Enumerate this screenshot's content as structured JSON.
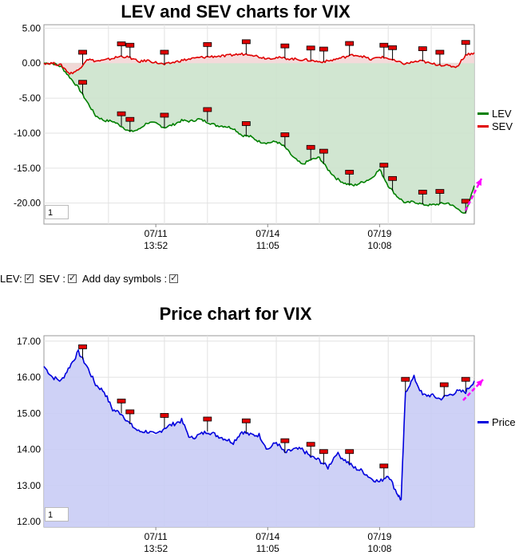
{
  "chart_data": [
    {
      "type": "area",
      "title": "LEV and SEV charts for VIX",
      "y_ticks": [
        "5.00",
        "0.00",
        "-5.00",
        "-10.00",
        "-15.00",
        "-20.00"
      ],
      "ylim": [
        -23.0,
        5.5
      ],
      "x_ticks": [
        {
          "date": "07/11",
          "time": "13:52"
        },
        {
          "date": "07/14",
          "time": "11:05"
        },
        {
          "date": "07/19",
          "time": "10:08"
        }
      ],
      "legend_position": "right",
      "zoom_value": "1",
      "series": [
        {
          "name": "LEV",
          "color": "#008000",
          "fill": "#cce3cc",
          "x": [
            0,
            2,
            4,
            6,
            8,
            10,
            12,
            14,
            16,
            18,
            20,
            22,
            24,
            26,
            28,
            30,
            32,
            34,
            36,
            38,
            40,
            42,
            44,
            46,
            48,
            50,
            52,
            54,
            56,
            58,
            60,
            62,
            64,
            66,
            68,
            70,
            72,
            74,
            76,
            78,
            80,
            82,
            84,
            86,
            88,
            90,
            92,
            94,
            96,
            98,
            100
          ],
          "values": [
            0,
            0,
            -0.5,
            -2,
            -3.5,
            -5.5,
            -7.5,
            -8.2,
            -8.3,
            -9,
            -9.8,
            -9.5,
            -8.5,
            -8.6,
            -9.2,
            -8.8,
            -8.2,
            -8.3,
            -8,
            -8.4,
            -8.9,
            -9,
            -9.3,
            -10.3,
            -10.5,
            -11.2,
            -11.4,
            -11.2,
            -12,
            -13.5,
            -14.5,
            -13.8,
            -13.5,
            -15.2,
            -16.5,
            -17.2,
            -17.5,
            -17,
            -16.5,
            -15.2,
            -17.5,
            -19,
            -20,
            -19.8,
            -20.2,
            -20.3,
            -20.1,
            -20,
            -20.8,
            -21.5,
            -17.5
          ]
        },
        {
          "name": "SEV",
          "color": "#e00000",
          "fill": "#f3d6d6",
          "x": [
            0,
            2,
            4,
            6,
            8,
            10,
            12,
            14,
            16,
            18,
            20,
            22,
            24,
            26,
            28,
            30,
            32,
            34,
            36,
            38,
            40,
            42,
            44,
            46,
            48,
            50,
            52,
            54,
            56,
            58,
            60,
            62,
            64,
            66,
            68,
            70,
            72,
            74,
            76,
            78,
            80,
            82,
            84,
            86,
            88,
            90,
            92,
            94,
            96,
            98,
            100
          ],
          "values": [
            0,
            0,
            -0.3,
            -1.5,
            -1.0,
            0.6,
            0.3,
            0.4,
            0.7,
            1.0,
            0.8,
            0.2,
            0.4,
            0.1,
            -0.2,
            0.1,
            0.4,
            0.6,
            0.8,
            0.9,
            1.0,
            1.0,
            1.2,
            1.3,
            1.3,
            0.9,
            0.7,
            0.8,
            0.7,
            0.6,
            0.5,
            0.4,
            0.2,
            0.3,
            0.6,
            0.9,
            1.2,
            1.0,
            0.5,
            0.9,
            0.7,
            0.2,
            -0.1,
            0.2,
            0.3,
            -0.1,
            -0.2,
            -0.4,
            -0.5,
            1.2,
            1.5
          ]
        }
      ],
      "markers_x": [
        9,
        18,
        20,
        28,
        38,
        47,
        56,
        62,
        65,
        71,
        79,
        81,
        88,
        92,
        98
      ]
    },
    {
      "type": "area",
      "title": "Price chart for VIX",
      "y_ticks": [
        "17.00",
        "16.00",
        "15.00",
        "14.00",
        "13.00",
        "12.00"
      ],
      "ylim": [
        11.85,
        17.15
      ],
      "x_ticks": [
        {
          "date": "07/11",
          "time": "13:52"
        },
        {
          "date": "07/14",
          "time": "11:05"
        },
        {
          "date": "07/19",
          "time": "10:08"
        }
      ],
      "legend_position": "right",
      "zoom_value": "1",
      "series": [
        {
          "name": "Price",
          "color": "#0000dd",
          "fill": "#c9ccf5",
          "x": [
            0,
            2,
            4,
            6,
            8,
            10,
            12,
            14,
            16,
            18,
            20,
            22,
            24,
            26,
            28,
            30,
            32,
            34,
            36,
            38,
            40,
            42,
            44,
            46,
            48,
            50,
            52,
            54,
            56,
            58,
            60,
            62,
            64,
            66,
            68,
            70,
            72,
            74,
            76,
            78,
            80,
            82,
            83,
            84,
            86,
            88,
            90,
            92,
            94,
            96,
            98,
            100
          ],
          "values": [
            16.3,
            16.0,
            15.9,
            16.3,
            16.7,
            16.3,
            15.8,
            15.6,
            15.1,
            15.0,
            14.7,
            14.5,
            14.5,
            14.4,
            14.6,
            14.7,
            14.8,
            14.3,
            14.4,
            14.5,
            14.4,
            14.3,
            14.2,
            14.5,
            14.4,
            14.4,
            14.0,
            14.2,
            13.9,
            14.0,
            14.0,
            13.8,
            13.7,
            13.5,
            13.9,
            13.7,
            13.5,
            13.4,
            13.2,
            13.1,
            13.3,
            12.8,
            12.6,
            15.6,
            16.0,
            15.5,
            15.5,
            15.4,
            15.5,
            15.6,
            15.6,
            15.9
          ]
        }
      ],
      "markers_x": [
        9,
        18,
        20,
        28,
        38,
        47,
        56,
        62,
        65,
        71,
        79,
        84,
        93,
        98
      ]
    }
  ]
}
